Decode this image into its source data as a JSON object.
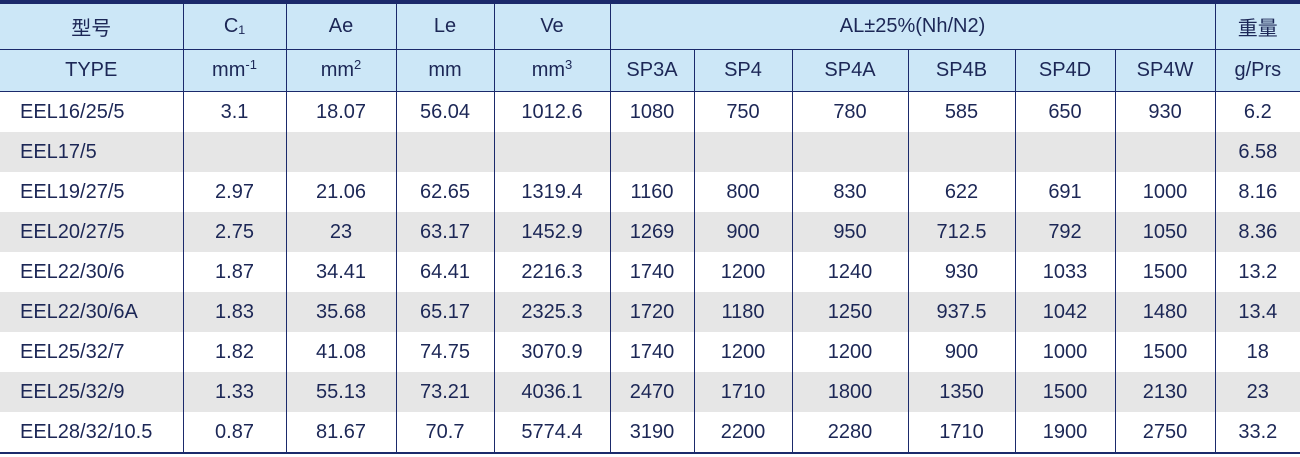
{
  "header": {
    "type_cn": "型号",
    "type_en": "TYPE",
    "c1": "C₁",
    "c1_unit": "mm",
    "c1_exp": "-1",
    "ae": "Ae",
    "ae_unit": "mm",
    "ae_exp": "2",
    "le": "Le",
    "le_unit": "mm",
    "ve": "Ve",
    "ve_unit": "mm",
    "ve_exp": "3",
    "al": "AL±25%(Nh/N2)",
    "materials": [
      "SP3A",
      "SP4",
      "SP4A",
      "SP4B",
      "SP4D",
      "SP4W"
    ],
    "weight_cn": "重量",
    "weight_unit": "g/Prs"
  },
  "rows": [
    [
      "EEL16/25/5",
      "3.1",
      "18.07",
      "56.04",
      "1012.6",
      "1080",
      "750",
      "780",
      "585",
      "650",
      "930",
      "6.2"
    ],
    [
      "EEL17/5",
      "",
      "",
      "",
      "",
      "",
      "",
      "",
      "",
      "",
      "",
      "6.58"
    ],
    [
      "EEL19/27/5",
      "2.97",
      "21.06",
      "62.65",
      "1319.4",
      "1160",
      "800",
      "830",
      "622",
      "691",
      "1000",
      "8.16"
    ],
    [
      "EEL20/27/5",
      "2.75",
      "23",
      "63.17",
      "1452.9",
      "1269",
      "900",
      "950",
      "712.5",
      "792",
      "1050",
      "8.36"
    ],
    [
      "EEL22/30/6",
      "1.87",
      "34.41",
      "64.41",
      "2216.3",
      "1740",
      "1200",
      "1240",
      "930",
      "1033",
      "1500",
      "13.2"
    ],
    [
      "EEL22/30/6A",
      "1.83",
      "35.68",
      "65.17",
      "2325.3",
      "1720",
      "1180",
      "1250",
      "937.5",
      "1042",
      "1480",
      "13.4"
    ],
    [
      "EEL25/32/7",
      "1.82",
      "41.08",
      "74.75",
      "3070.9",
      "1740",
      "1200",
      "1200",
      "900",
      "1000",
      "1500",
      "18"
    ],
    [
      "EEL25/32/9",
      "1.33",
      "55.13",
      "73.21",
      "4036.1",
      "2470",
      "1710",
      "1800",
      "1350",
      "1500",
      "2130",
      "23"
    ],
    [
      "EEL28/32/10.5",
      "0.87",
      "81.67",
      "70.7",
      "5774.4",
      "3190",
      "2200",
      "2280",
      "1710",
      "1900",
      "2750",
      "33.2"
    ]
  ]
}
